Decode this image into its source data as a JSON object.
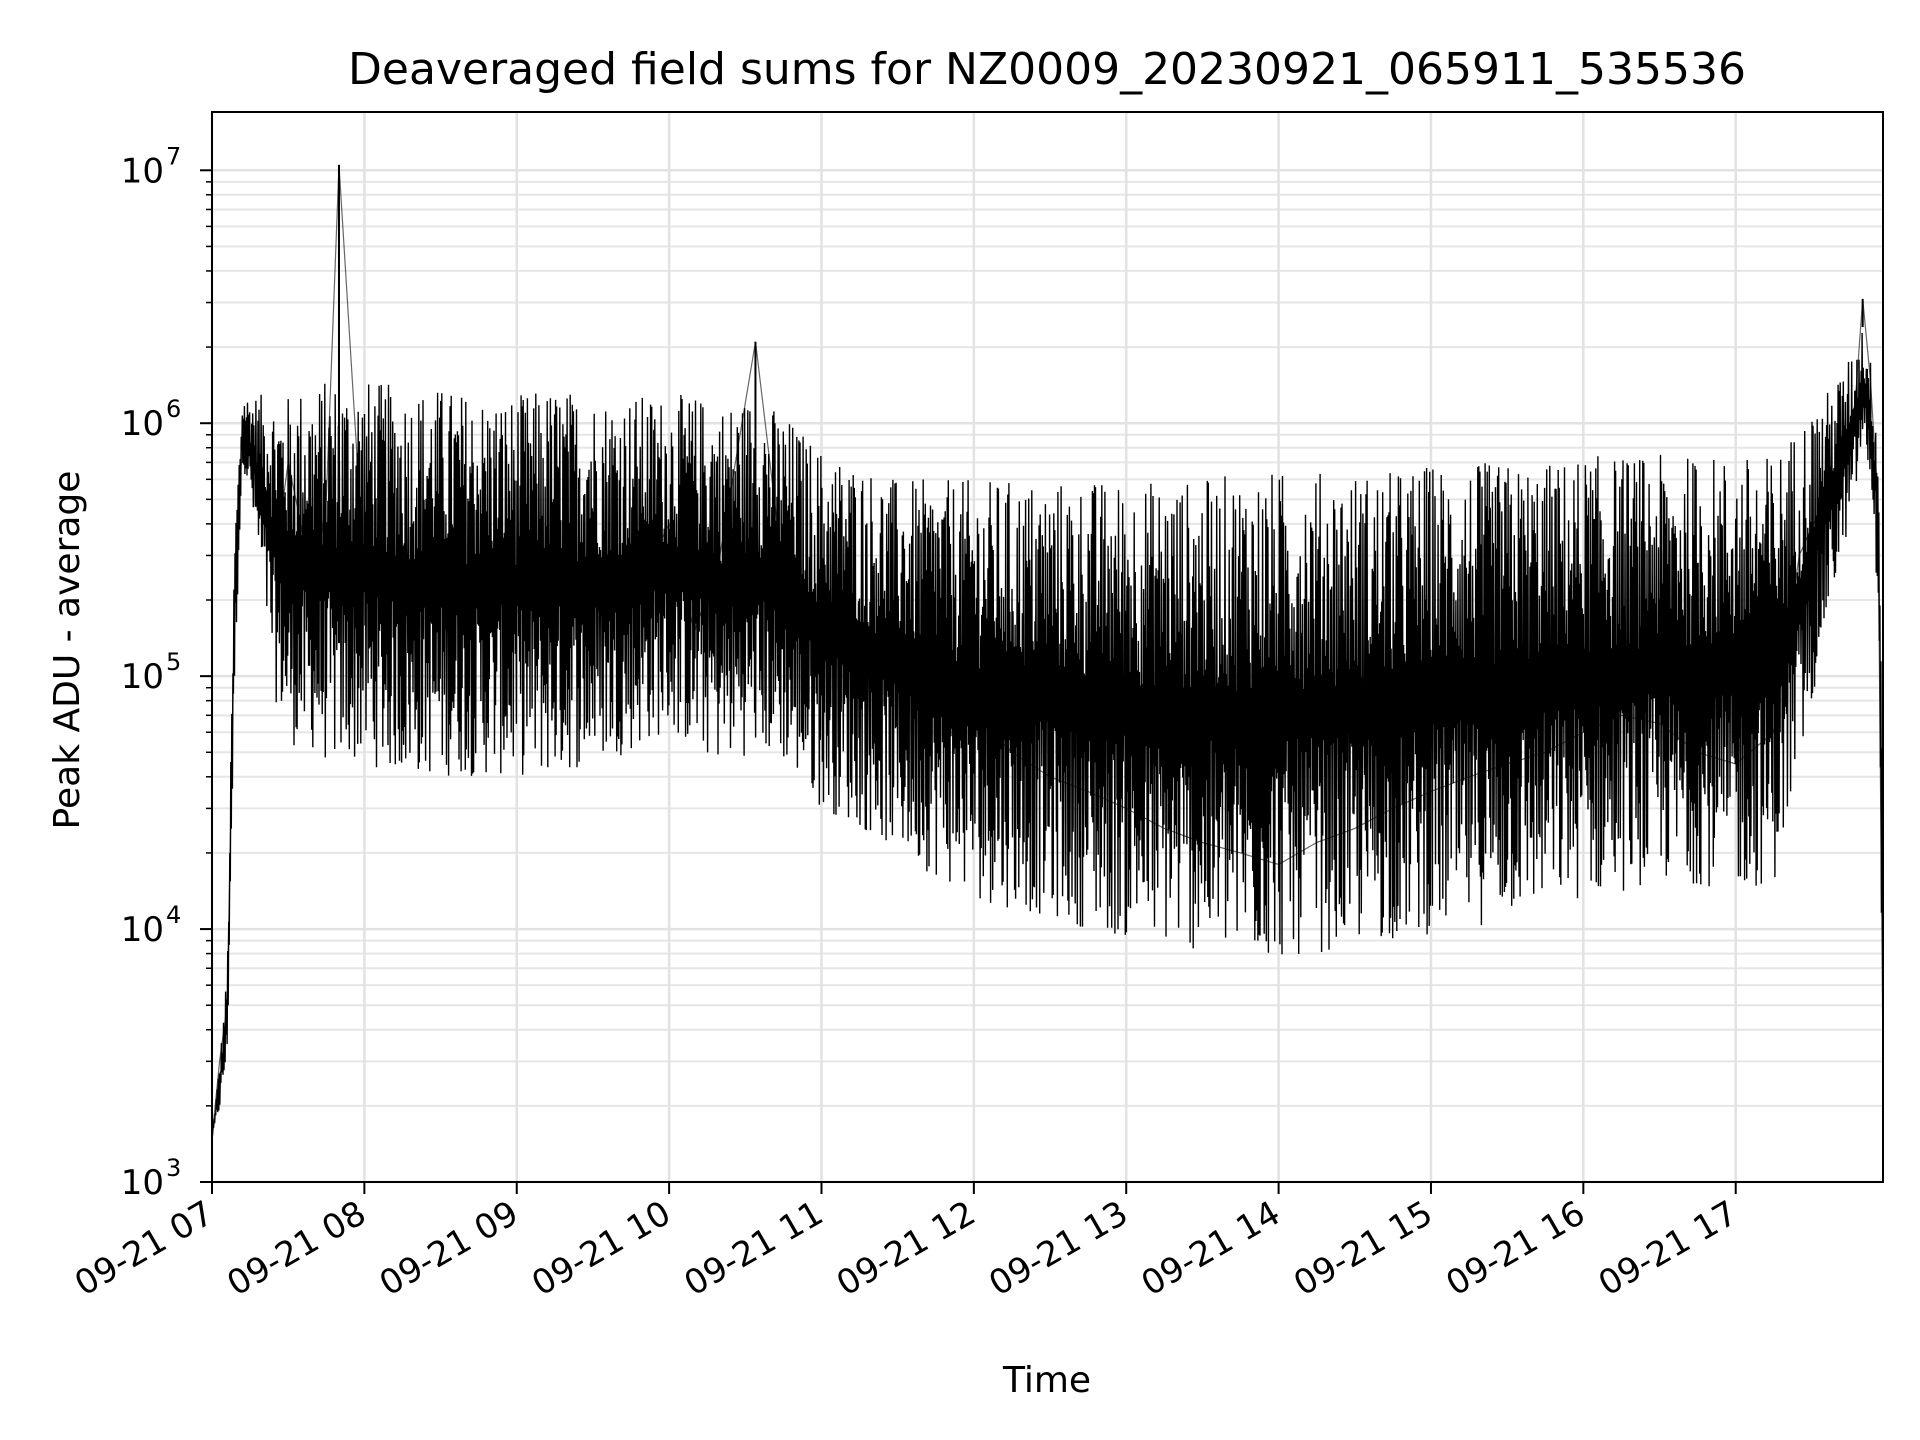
{
  "chart_data": {
    "type": "line",
    "title": "Deaveraged field sums for NZ0009_20230921_065911_535536",
    "xlabel": "Time",
    "ylabel": "Peak ADU - average",
    "yscale": "log",
    "ylim": [
      1000,
      17000000
    ],
    "xlim": [
      "2023-09-21 07:00",
      "2023-09-21 17:58"
    ],
    "x_ticks": [
      "09-21 07",
      "09-21 08",
      "09-21 09",
      "09-21 10",
      "09-21 11",
      "09-21 12",
      "09-21 13",
      "09-21 14",
      "09-21 15",
      "09-21 16",
      "09-21 17"
    ],
    "y_ticks": [
      {
        "base": "10",
        "exp": "3"
      },
      {
        "base": "10",
        "exp": "4"
      },
      {
        "base": "10",
        "exp": "5"
      },
      {
        "base": "10",
        "exp": "6"
      },
      {
        "base": "10",
        "exp": "7"
      }
    ],
    "grid": true,
    "line_color": "#000000",
    "series": [
      {
        "x": [
          "2023-09-21 07:00",
          "2023-09-21 07:03",
          "2023-09-21 07:06",
          "2023-09-21 07:09",
          "2023-09-21 07:12",
          "2023-09-21 07:15",
          "2023-09-21 07:20",
          "2023-09-21 07:25",
          "2023-09-21 07:30",
          "2023-09-21 07:35",
          "2023-09-21 07:40",
          "2023-09-21 07:45",
          "2023-09-21 07:50",
          "2023-09-21 08:00",
          "2023-09-21 08:15",
          "2023-09-21 08:30",
          "2023-09-21 08:45",
          "2023-09-21 09:00",
          "2023-09-21 09:15",
          "2023-09-21 09:30",
          "2023-09-21 09:45",
          "2023-09-21 10:00",
          "2023-09-21 10:10",
          "2023-09-21 10:20",
          "2023-09-21 10:34",
          "2023-09-21 10:45",
          "2023-09-21 11:00",
          "2023-09-21 11:15",
          "2023-09-21 11:30",
          "2023-09-21 11:45",
          "2023-09-21 12:00",
          "2023-09-21 12:15",
          "2023-09-21 12:30",
          "2023-09-21 12:45",
          "2023-09-21 13:00",
          "2023-09-21 13:15",
          "2023-09-21 13:30",
          "2023-09-21 13:45",
          "2023-09-21 14:00",
          "2023-09-21 14:15",
          "2023-09-21 14:30",
          "2023-09-21 14:45",
          "2023-09-21 15:00",
          "2023-09-21 15:15",
          "2023-09-21 15:30",
          "2023-09-21 15:45",
          "2023-09-21 16:00",
          "2023-09-21 16:15",
          "2023-09-21 16:30",
          "2023-09-21 16:45",
          "2023-09-21 17:00",
          "2023-09-21 17:15",
          "2023-09-21 17:25",
          "2023-09-21 17:35",
          "2023-09-21 17:42",
          "2023-09-21 17:47",
          "2023-09-21 17:50",
          "2023-09-21 17:53",
          "2023-09-21 17:56",
          "2023-09-21 17:58"
        ],
        "y": [
          1500,
          3000,
          5000,
          200000,
          900000,
          800000,
          600000,
          300000,
          700000,
          400000,
          200000,
          500000,
          10500000,
          250000,
          300000,
          250000,
          200000,
          180000,
          220000,
          250000,
          200000,
          400000,
          150000,
          300000,
          2100000,
          250000,
          150000,
          120000,
          100000,
          80000,
          70000,
          50000,
          40000,
          35000,
          30000,
          25000,
          22000,
          20000,
          18000,
          22000,
          25000,
          30000,
          35000,
          40000,
          45000,
          50000,
          60000,
          70000,
          65000,
          50000,
          45000,
          60000,
          300000,
          500000,
          700000,
          1200000,
          3100000,
          1500000,
          500000,
          3000
        ],
        "band_upper": [
          1500,
          3000,
          7000,
          400000,
          1300000,
          1300000,
          1300000,
          1300000,
          1300000,
          1400000,
          1400000,
          1500000,
          1500000,
          1500000,
          1400000,
          1400000,
          1300000,
          1300000,
          1400000,
          1300000,
          1300000,
          1300000,
          1300000,
          1200000,
          1300000,
          1100000,
          800000,
          700000,
          600000,
          600000,
          600000,
          600000,
          600000,
          600000,
          600000,
          600000,
          600000,
          650000,
          650000,
          650000,
          650000,
          650000,
          700000,
          700000,
          700000,
          700000,
          750000,
          750000,
          750000,
          750000,
          750000,
          750000,
          1000000,
          1300000,
          1600000,
          2000000,
          2500000,
          1800000,
          1000000,
          70000
        ],
        "band_lower": [
          1500,
          1900,
          3000,
          100000,
          700000,
          500000,
          200000,
          80000,
          55000,
          50000,
          50000,
          45000,
          45000,
          45000,
          40000,
          40000,
          40000,
          40000,
          40000,
          45000,
          50000,
          60000,
          50000,
          45000,
          50000,
          45000,
          30000,
          25000,
          20000,
          16000,
          13000,
          12000,
          11000,
          10000,
          9000,
          8500,
          8000,
          7500,
          7500,
          8000,
          8500,
          9000,
          9500,
          10000,
          11000,
          12000,
          13000,
          14000,
          15000,
          15000,
          14000,
          15000,
          40000,
          150000,
          300000,
          500000,
          800000,
          600000,
          200000,
          3000
        ]
      }
    ]
  }
}
